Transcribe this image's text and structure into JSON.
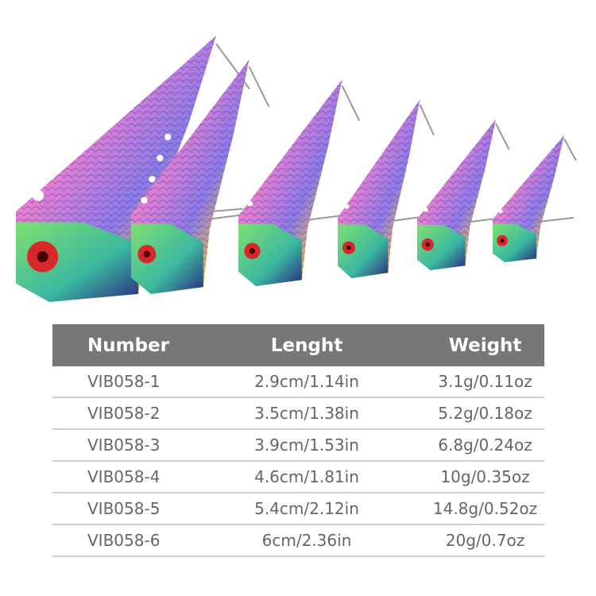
{
  "product": {
    "image_alt": "six rainbow-scale metal vib fishing lures of decreasing size",
    "lure_count": 6,
    "colors": {
      "header_bg": "#777777",
      "text": "#666666",
      "scale_pink": "#e77fd0",
      "scale_blue": "#4fb3e8",
      "head_green": "#5fd36a",
      "eye_red": "#d8272b"
    }
  },
  "table": {
    "headers": [
      "Number",
      "Lenght",
      "Weight"
    ],
    "rows": [
      [
        "VIB058-1",
        "2.9cm/1.14in",
        "3.1g/0.11oz"
      ],
      [
        "VIB058-2",
        "3.5cm/1.38in",
        "5.2g/0.18oz"
      ],
      [
        "VIB058-3",
        "3.9cm/1.53in",
        "6.8g/0.24oz"
      ],
      [
        "VIB058-4",
        "4.6cm/1.81in",
        "10g/0.35oz"
      ],
      [
        "VIB058-5",
        "5.4cm/2.12in",
        "14.8g/0.52oz"
      ],
      [
        "VIB058-6",
        "6cm/2.36in",
        "20g/0.7oz"
      ]
    ]
  }
}
